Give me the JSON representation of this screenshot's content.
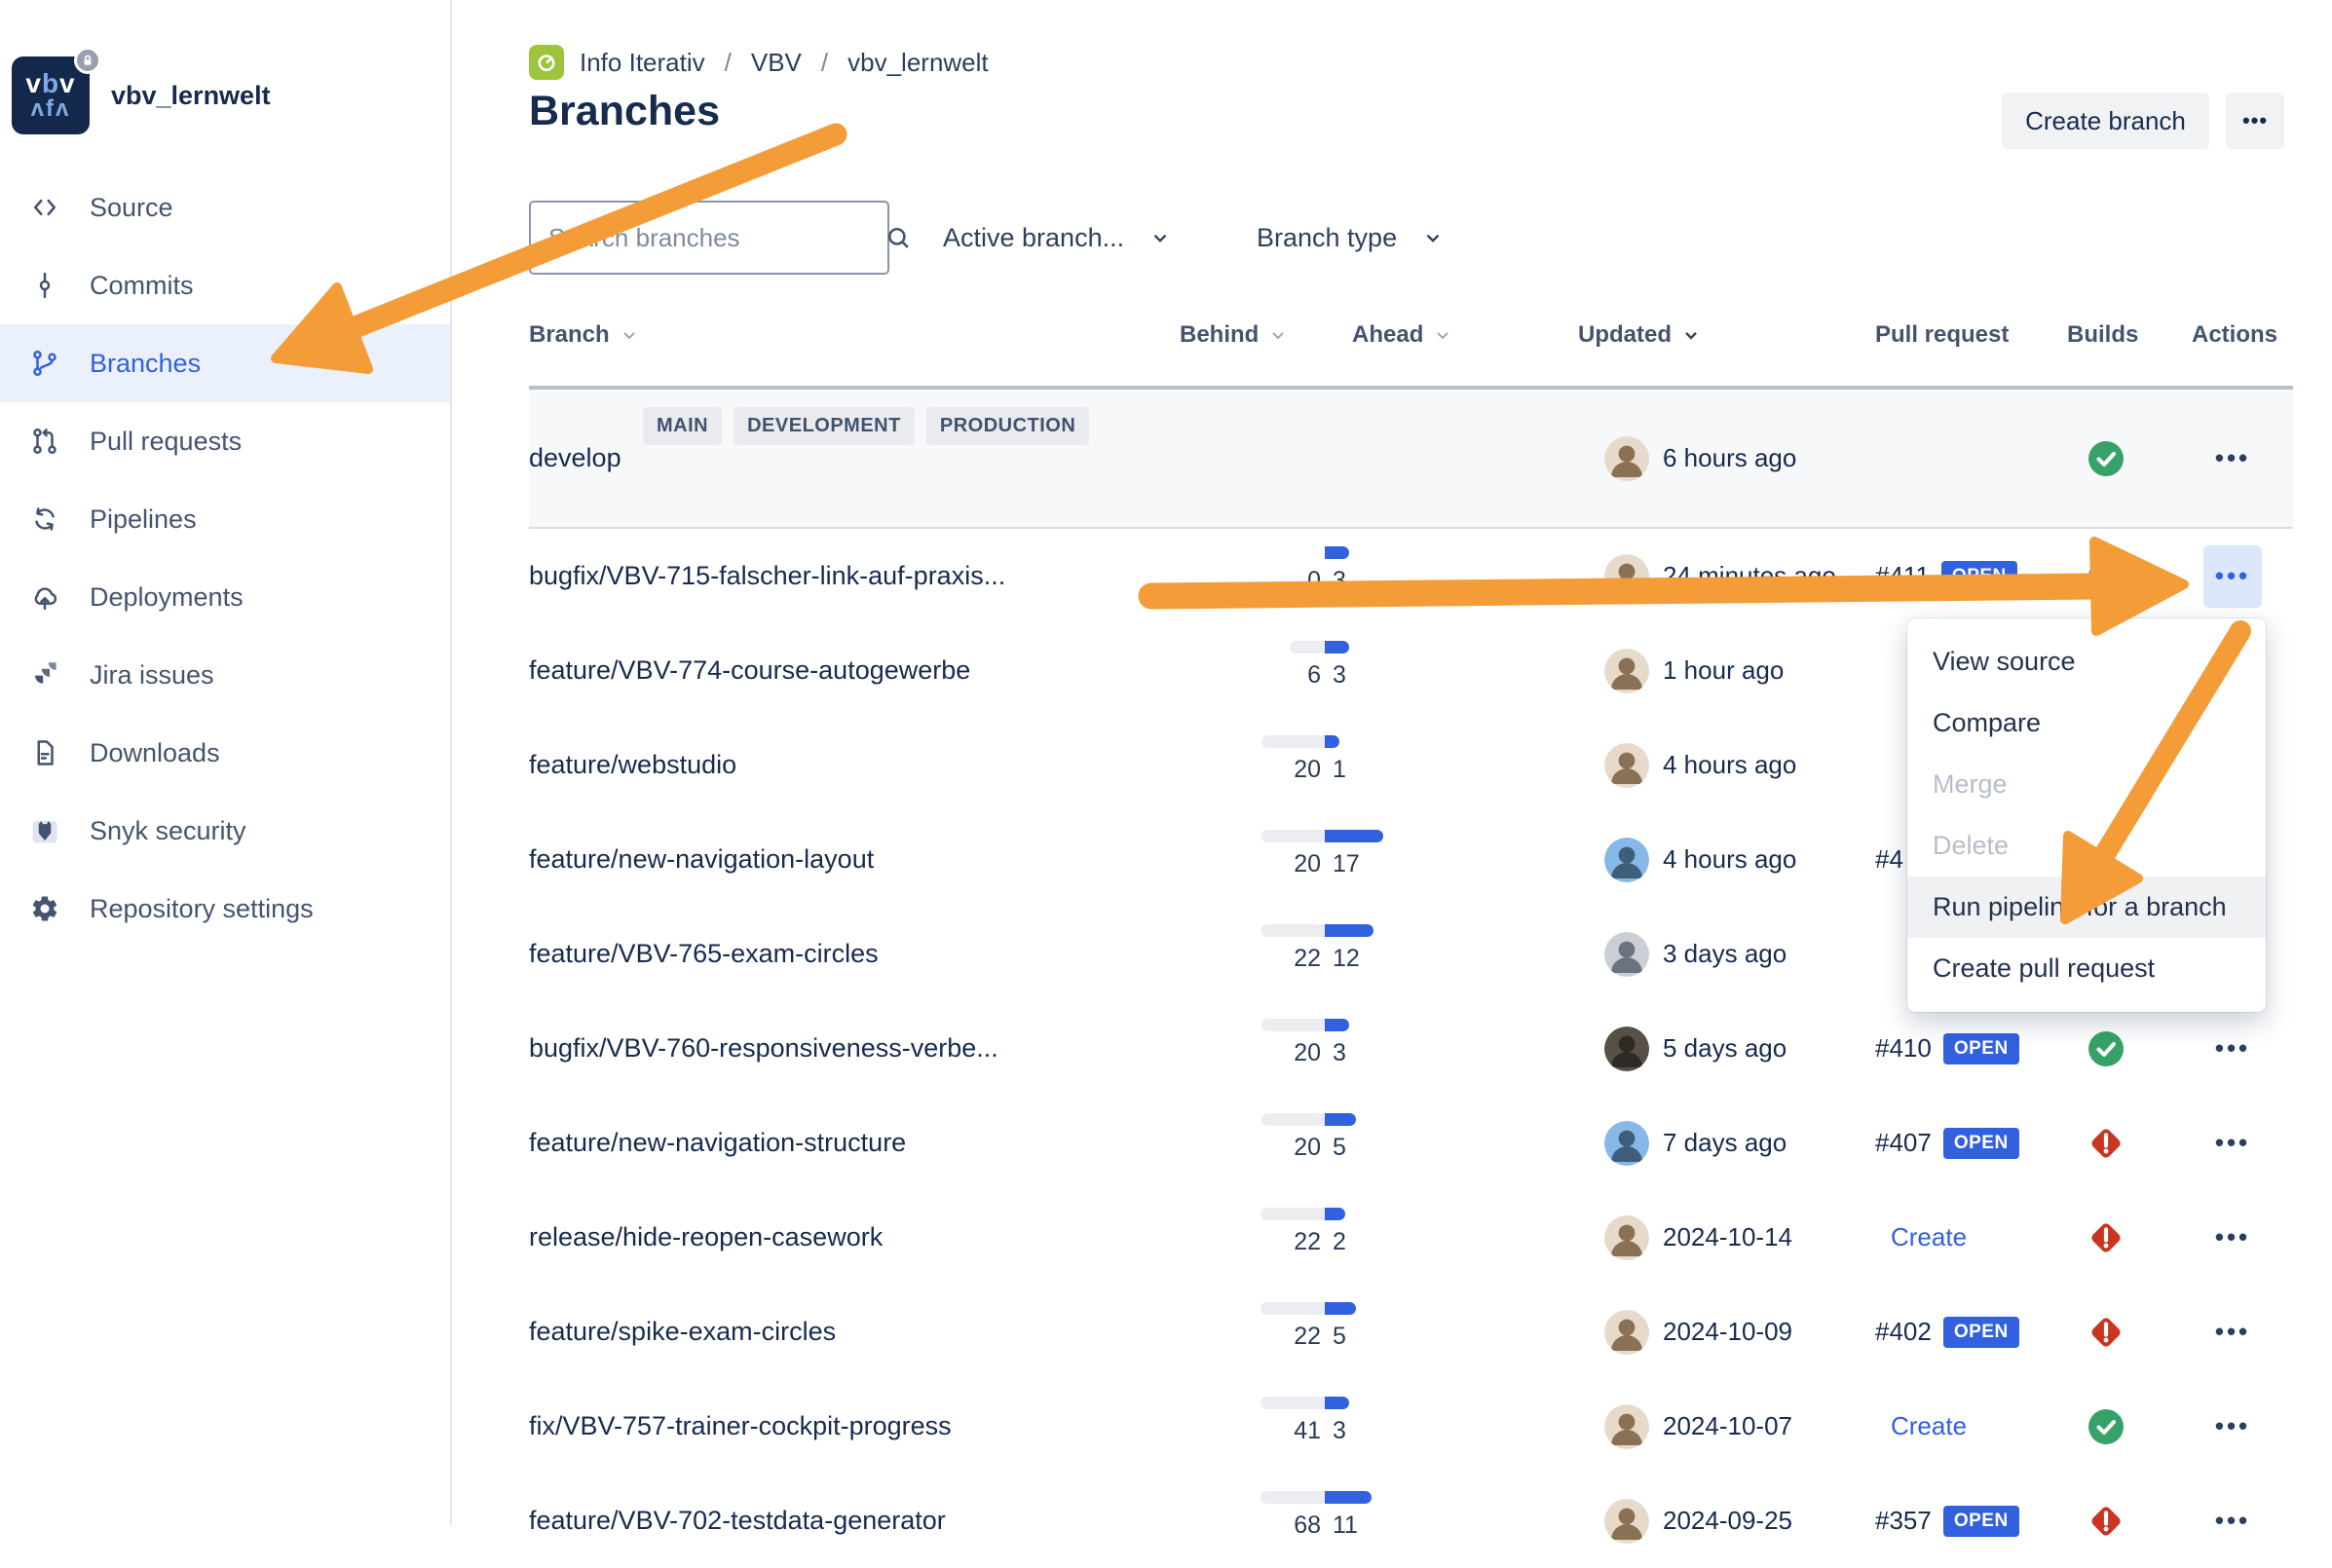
{
  "colors": {
    "accent_blue": "#3261DF",
    "success_green": "#36A269",
    "fail_red": "#CA3521",
    "annotation_orange": "#F39C38",
    "active_bg": "#EAF0FC",
    "breadcrumb_icon_green": "#9EC43C"
  },
  "sidebar": {
    "repo_name": "vbv_lernwelt",
    "items": [
      {
        "label": "Source",
        "icon": "code-icon",
        "active": false
      },
      {
        "label": "Commits",
        "icon": "commit-icon",
        "active": false
      },
      {
        "label": "Branches",
        "icon": "branch-icon",
        "active": true
      },
      {
        "label": "Pull requests",
        "icon": "pull-request-icon",
        "active": false
      },
      {
        "label": "Pipelines",
        "icon": "pipelines-icon",
        "active": false
      },
      {
        "label": "Deployments",
        "icon": "deployments-icon",
        "active": false
      },
      {
        "label": "Jira issues",
        "icon": "jira-icon",
        "active": false
      },
      {
        "label": "Downloads",
        "icon": "downloads-icon",
        "active": false
      },
      {
        "label": "Snyk security",
        "icon": "snyk-icon",
        "active": false
      },
      {
        "label": "Repository settings",
        "icon": "settings-icon",
        "active": false
      }
    ]
  },
  "header": {
    "breadcrumb": [
      "Info Iterativ",
      "VBV",
      "vbv_lernwelt"
    ],
    "title": "Branches",
    "create_branch_label": "Create branch",
    "more_label": "•••"
  },
  "filters": {
    "search_placeholder": "Search branches",
    "branch_filter_label": "Active branch...",
    "branch_type_label": "Branch type"
  },
  "table": {
    "columns": [
      {
        "label": "Branch",
        "sort": "light"
      },
      {
        "label": "Behind",
        "sort": "light"
      },
      {
        "label": "Ahead",
        "sort": "light"
      },
      {
        "label": "Updated",
        "sort": "dark"
      },
      {
        "label": "Pull request"
      },
      {
        "label": "Builds"
      },
      {
        "label": "Actions"
      }
    ],
    "rows": [
      {
        "type": "main",
        "name": "develop",
        "labels": [
          "MAIN",
          "DEVELOPMENT",
          "PRODUCTION"
        ],
        "updated": "6 hours ago",
        "avatar": "tan",
        "build": "success",
        "actions": true
      },
      {
        "name": "bugfix/VBV-715-falscher-link-auf-praxis...",
        "behind": 0,
        "ahead": 3,
        "updated": "24 minutes ago",
        "avatar": "tan",
        "pr": "#411",
        "pr_badge": "OPEN",
        "build": "inprogress",
        "actions": true,
        "actions_selected": true
      },
      {
        "name": "feature/VBV-774-course-autogewerbe",
        "behind": 6,
        "ahead": 3,
        "updated": "1 hour ago",
        "avatar": "tan"
      },
      {
        "name": "feature/webstudio",
        "behind": 20,
        "ahead": 1,
        "updated": "4 hours ago",
        "avatar": "tan"
      },
      {
        "name": "feature/new-navigation-layout",
        "behind": 20,
        "ahead": 17,
        "updated": "4 hours ago",
        "avatar": "knight",
        "pr": "#4"
      },
      {
        "name": "feature/VBV-765-exam-circles",
        "behind": 22,
        "ahead": 12,
        "updated": "3 days ago",
        "avatar": "gray"
      },
      {
        "name": "bugfix/VBV-760-responsiveness-verbe...",
        "behind": 20,
        "ahead": 3,
        "updated": "5 days ago",
        "avatar": "dark",
        "pr": "#410",
        "pr_badge": "OPEN",
        "build": "success",
        "actions": true
      },
      {
        "name": "feature/new-navigation-structure",
        "behind": 20,
        "ahead": 5,
        "updated": "7 days ago",
        "avatar": "knight",
        "pr": "#407",
        "pr_badge": "OPEN",
        "build": "failed",
        "actions": true
      },
      {
        "name": "release/hide-reopen-casework",
        "behind": 22,
        "ahead": 2,
        "updated": "2024-10-14",
        "avatar": "tan",
        "pr_link": "Create",
        "build": "failed",
        "actions": true
      },
      {
        "name": "feature/spike-exam-circles",
        "behind": 22,
        "ahead": 5,
        "updated": "2024-10-09",
        "avatar": "tan",
        "pr": "#402",
        "pr_badge": "OPEN",
        "build": "failed",
        "actions": true
      },
      {
        "name": "fix/VBV-757-trainer-cockpit-progress",
        "behind": 41,
        "ahead": 3,
        "updated": "2024-10-07",
        "avatar": "tan",
        "pr_link": "Create",
        "build": "success",
        "actions": true
      },
      {
        "name": "feature/VBV-702-testdata-generator",
        "behind": 68,
        "ahead": 11,
        "updated": "2024-09-25",
        "avatar": "tan",
        "pr": "#357",
        "pr_badge": "OPEN",
        "build": "failed",
        "actions": true
      }
    ]
  },
  "context_menu": {
    "items": [
      {
        "label": "View source"
      },
      {
        "label": "Compare"
      },
      {
        "label": "Merge",
        "disabled": true
      },
      {
        "label": "Delete",
        "disabled": true
      },
      {
        "label": "Run pipeline for a branch",
        "highlighted": true
      },
      {
        "label": "Create pull request"
      }
    ]
  }
}
